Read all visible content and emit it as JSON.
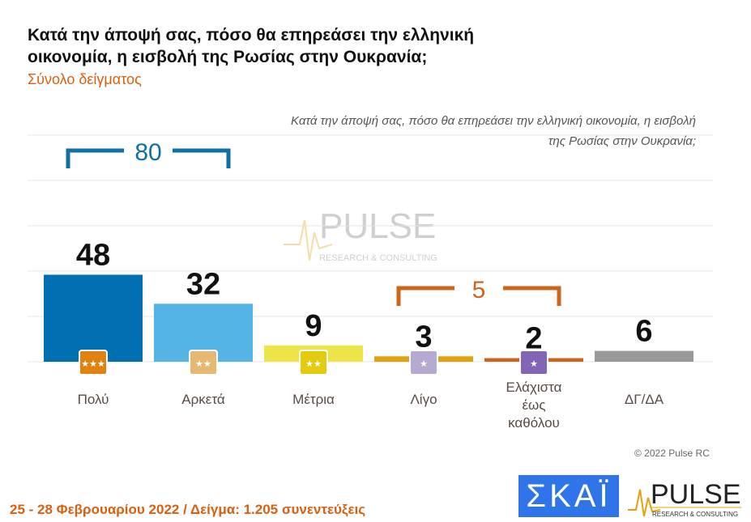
{
  "header": {
    "title": "Κατά την άποψή σας, πόσο θα επηρεάσει την ελληνική οικονομία, η εισβολή της Ρωσίας στην Ουκρανία;",
    "subtitle": "Σύνολο δείγματος"
  },
  "chart_data": {
    "type": "bar",
    "title": "Κατά την άποψή σας, πόσο θα επηρεάσει την ελληνική οικονομία, η εισβολή της Ρωσίας στην Ουκρανία;",
    "categories": [
      "Πολύ",
      "Αρκετά",
      "Μέτρια",
      "Λίγο",
      "Ελάχιστα έως καθόλου",
      "ΔΓ/ΔΑ"
    ],
    "values": [
      48,
      32,
      9,
      3,
      2,
      6
    ],
    "colors": [
      "#0070b3",
      "#55b4e6",
      "#ede548",
      "#e3a10e",
      "#d0651a",
      "#999999"
    ],
    "icon_colors": [
      "#e0820f",
      "#e6b870",
      "#e3cc10",
      "#b7aad0",
      "#8266b5"
    ],
    "ylim": [
      0,
      125
    ],
    "grid": true,
    "brackets": [
      {
        "label": "80",
        "categories": [
          "Πολύ",
          "Αρκετά"
        ],
        "color": "#0f6fa8"
      },
      {
        "label": "5",
        "categories": [
          "Λίγο",
          "Ελάχιστα έως καθόλου"
        ],
        "color": "#d0651a"
      }
    ]
  },
  "footer": {
    "text": "25 - 28 Φεβρουαρίου 2022 / Δείγμα: 1.205 συνεντεύξεις",
    "copyright": "© 2022 Pulse RC"
  },
  "logos": {
    "skai": "ΣΚΑΪ",
    "pulse": "PULSE",
    "pulse_sub": "RESEARCH & CONSULTING"
  }
}
